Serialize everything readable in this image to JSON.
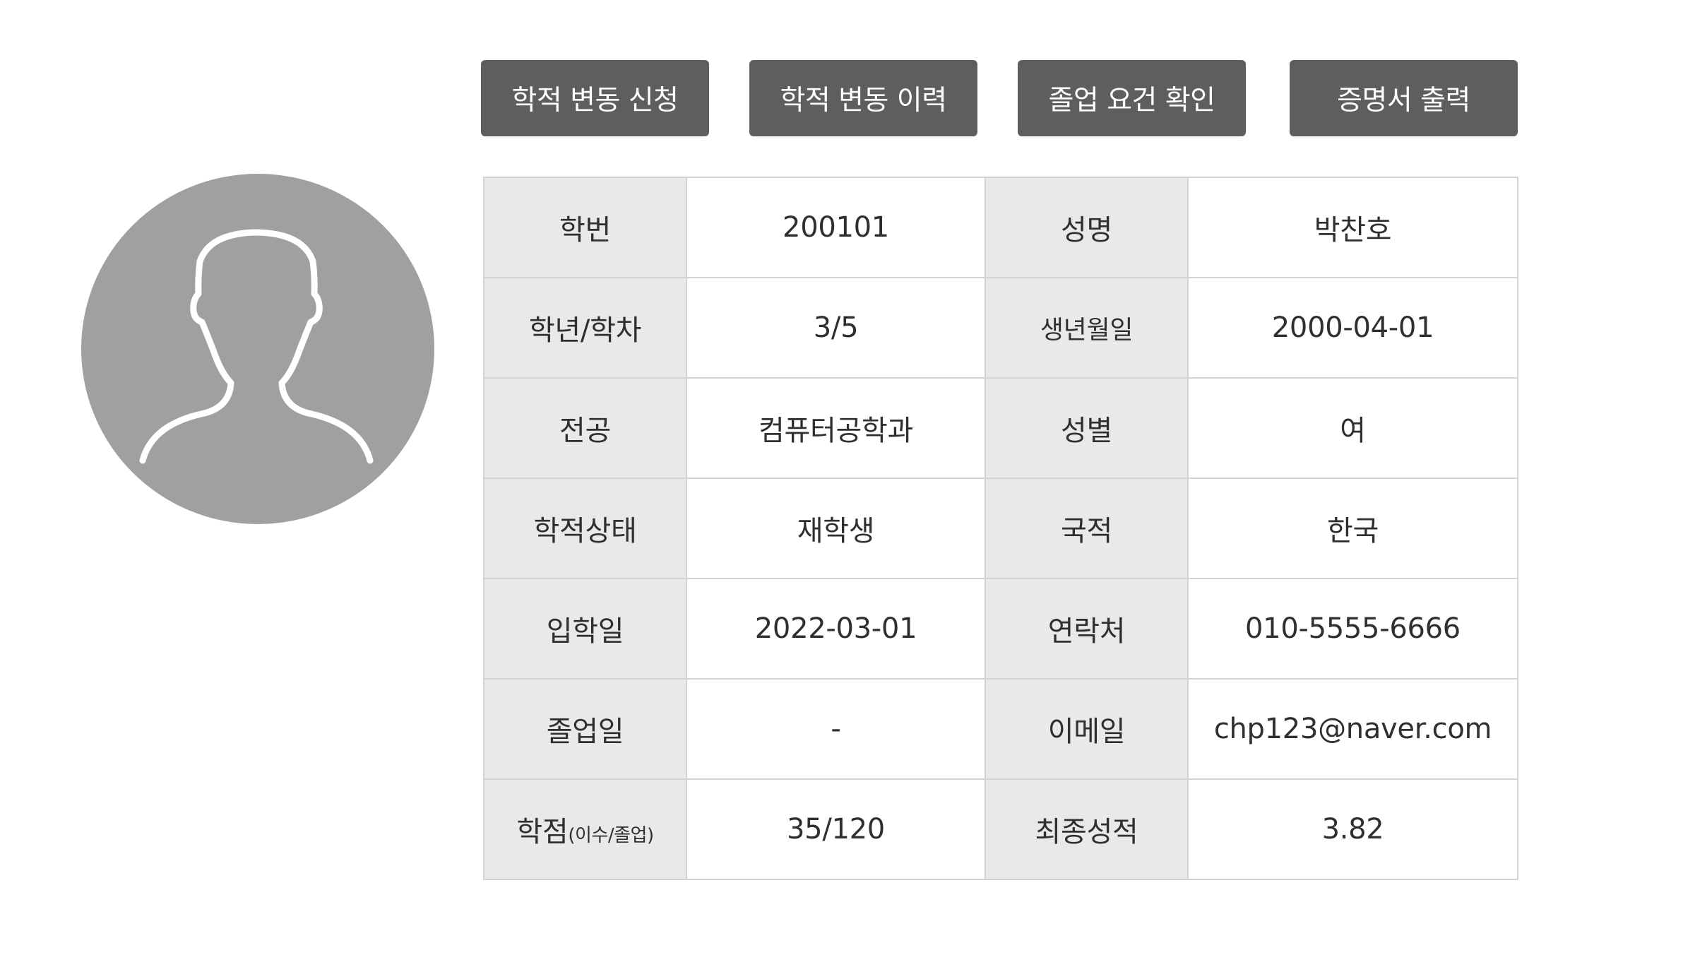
{
  "toolbar": {
    "buttons": [
      {
        "label": "학적 변동 신청"
      },
      {
        "label": "학적 변동 이력"
      },
      {
        "label": "졸업 요건 확인"
      },
      {
        "label": "증명서 출력"
      }
    ]
  },
  "profile": {
    "avatar_icon": "person-silhouette-icon"
  },
  "info": {
    "rows": [
      {
        "label1": "학번",
        "value1": "200101",
        "label2": "성명",
        "value2": "박찬호"
      },
      {
        "label1": "학년/학차",
        "value1": "3/5",
        "label2": "생년월일",
        "value2": "2000-04-01"
      },
      {
        "label1": "전공",
        "value1": "컴퓨터공학과",
        "label2": "성별",
        "value2": "여"
      },
      {
        "label1": "학적상태",
        "value1": "재학생",
        "label2": "국적",
        "value2": "한국"
      },
      {
        "label1": "입학일",
        "value1": "2022-03-01",
        "label2": "연락처",
        "value2": "010-5555-6666"
      },
      {
        "label1": "졸업일",
        "value1": "-",
        "label2": "이메일",
        "value2": "chp123@naver.com"
      },
      {
        "label1": "학점",
        "label1_sub": "(이수/졸업)",
        "value1": "35/120",
        "label2": "최종성적",
        "value2": "3.82"
      }
    ]
  },
  "colors": {
    "button_bg": "#5e5e5e",
    "label_cell_bg": "#e9e9e9",
    "avatar_bg": "#a0a0a0",
    "border": "#d3d3d3"
  }
}
